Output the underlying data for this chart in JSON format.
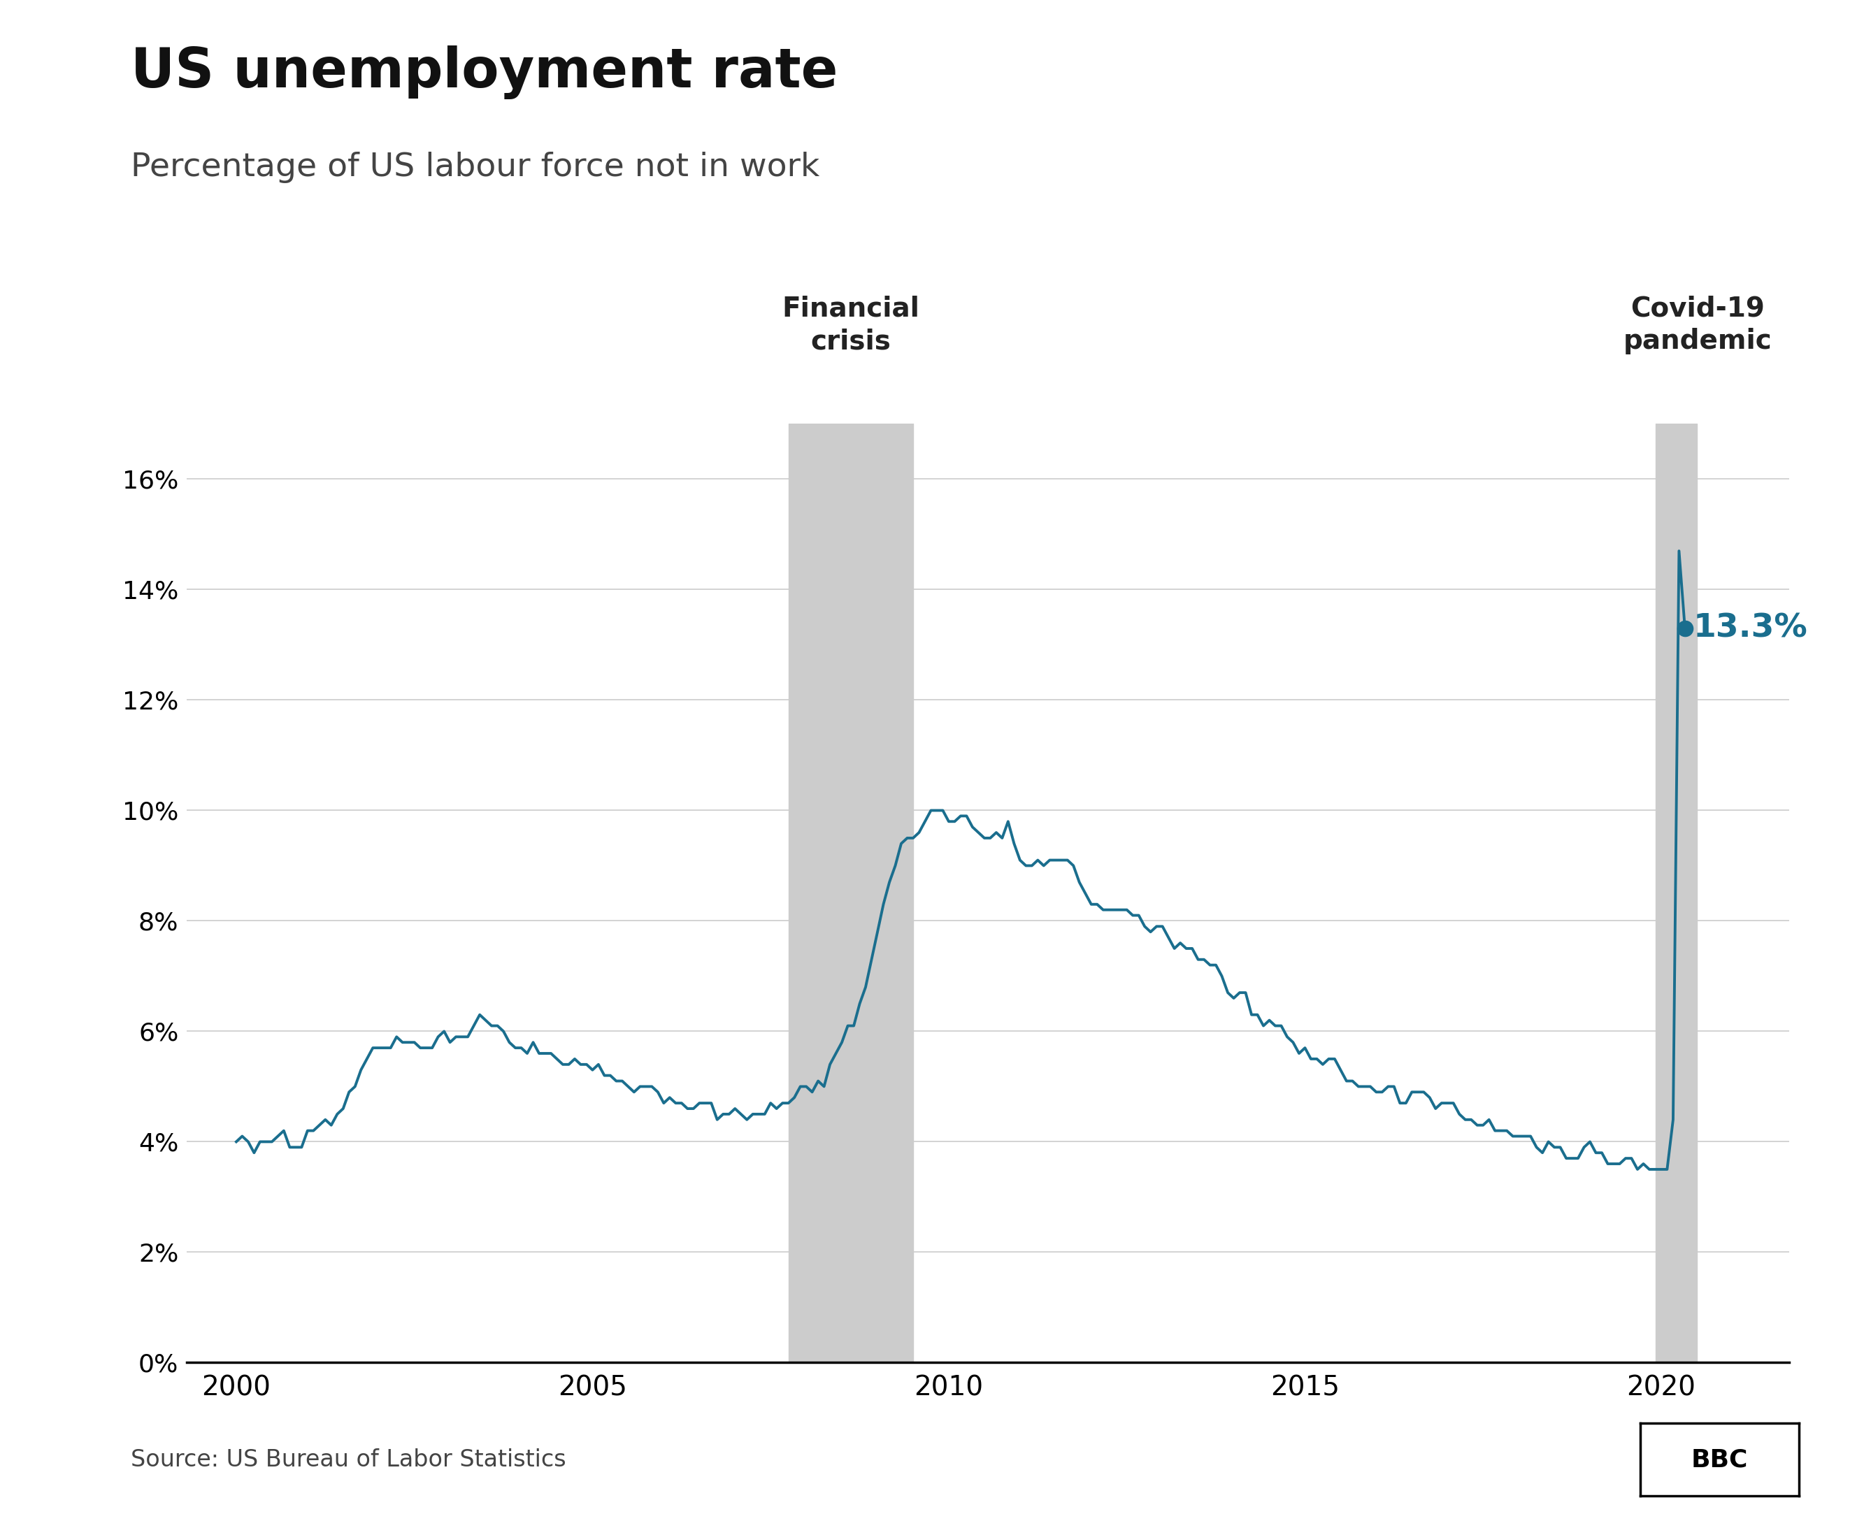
{
  "title": "US unemployment rate",
  "subtitle": "Percentage of US labour force not in work",
  "source": "Source: US Bureau of Labor Statistics",
  "line_color": "#1a6e8e",
  "background_color": "#ffffff",
  "annotation_label": "13.3%",
  "annotation_color": "#1a6e8e",
  "financial_crisis_label": "Financial\ncrisis",
  "covid_label": "Covid-19\npandemic",
  "shade_color": "#cccccc",
  "financial_crisis_start": 2007.75,
  "financial_crisis_end": 2009.5,
  "covid_start": 2019.92,
  "covid_end": 2020.5,
  "endpoint_x": 2020.333,
  "endpoint_y": 13.3,
  "ylim_min": 0,
  "ylim_max": 17,
  "yticks": [
    0,
    2,
    4,
    6,
    8,
    10,
    12,
    14,
    16
  ],
  "ytick_labels": [
    "0%",
    "2%",
    "4%",
    "6%",
    "8%",
    "10%",
    "12%",
    "14%",
    "16%"
  ],
  "xticks": [
    2000,
    2005,
    2010,
    2015,
    2020
  ],
  "xlim_min": 1999.3,
  "xlim_max": 2021.8,
  "data": [
    [
      2000.0,
      4.0
    ],
    [
      2000.083,
      4.1
    ],
    [
      2000.167,
      4.0
    ],
    [
      2000.25,
      3.8
    ],
    [
      2000.333,
      4.0
    ],
    [
      2000.417,
      4.0
    ],
    [
      2000.5,
      4.0
    ],
    [
      2000.583,
      4.1
    ],
    [
      2000.667,
      4.2
    ],
    [
      2000.75,
      3.9
    ],
    [
      2000.833,
      3.9
    ],
    [
      2000.917,
      3.9
    ],
    [
      2001.0,
      4.2
    ],
    [
      2001.083,
      4.2
    ],
    [
      2001.167,
      4.3
    ],
    [
      2001.25,
      4.4
    ],
    [
      2001.333,
      4.3
    ],
    [
      2001.417,
      4.5
    ],
    [
      2001.5,
      4.6
    ],
    [
      2001.583,
      4.9
    ],
    [
      2001.667,
      5.0
    ],
    [
      2001.75,
      5.3
    ],
    [
      2001.833,
      5.5
    ],
    [
      2001.917,
      5.7
    ],
    [
      2002.0,
      5.7
    ],
    [
      2002.083,
      5.7
    ],
    [
      2002.167,
      5.7
    ],
    [
      2002.25,
      5.9
    ],
    [
      2002.333,
      5.8
    ],
    [
      2002.417,
      5.8
    ],
    [
      2002.5,
      5.8
    ],
    [
      2002.583,
      5.7
    ],
    [
      2002.667,
      5.7
    ],
    [
      2002.75,
      5.7
    ],
    [
      2002.833,
      5.9
    ],
    [
      2002.917,
      6.0
    ],
    [
      2003.0,
      5.8
    ],
    [
      2003.083,
      5.9
    ],
    [
      2003.167,
      5.9
    ],
    [
      2003.25,
      5.9
    ],
    [
      2003.333,
      6.1
    ],
    [
      2003.417,
      6.3
    ],
    [
      2003.5,
      6.2
    ],
    [
      2003.583,
      6.1
    ],
    [
      2003.667,
      6.1
    ],
    [
      2003.75,
      6.0
    ],
    [
      2003.833,
      5.8
    ],
    [
      2003.917,
      5.7
    ],
    [
      2004.0,
      5.7
    ],
    [
      2004.083,
      5.6
    ],
    [
      2004.167,
      5.8
    ],
    [
      2004.25,
      5.6
    ],
    [
      2004.333,
      5.6
    ],
    [
      2004.417,
      5.6
    ],
    [
      2004.5,
      5.5
    ],
    [
      2004.583,
      5.4
    ],
    [
      2004.667,
      5.4
    ],
    [
      2004.75,
      5.5
    ],
    [
      2004.833,
      5.4
    ],
    [
      2004.917,
      5.4
    ],
    [
      2005.0,
      5.3
    ],
    [
      2005.083,
      5.4
    ],
    [
      2005.167,
      5.2
    ],
    [
      2005.25,
      5.2
    ],
    [
      2005.333,
      5.1
    ],
    [
      2005.417,
      5.1
    ],
    [
      2005.5,
      5.0
    ],
    [
      2005.583,
      4.9
    ],
    [
      2005.667,
      5.0
    ],
    [
      2005.75,
      5.0
    ],
    [
      2005.833,
      5.0
    ],
    [
      2005.917,
      4.9
    ],
    [
      2006.0,
      4.7
    ],
    [
      2006.083,
      4.8
    ],
    [
      2006.167,
      4.7
    ],
    [
      2006.25,
      4.7
    ],
    [
      2006.333,
      4.6
    ],
    [
      2006.417,
      4.6
    ],
    [
      2006.5,
      4.7
    ],
    [
      2006.583,
      4.7
    ],
    [
      2006.667,
      4.7
    ],
    [
      2006.75,
      4.4
    ],
    [
      2006.833,
      4.5
    ],
    [
      2006.917,
      4.5
    ],
    [
      2007.0,
      4.6
    ],
    [
      2007.083,
      4.5
    ],
    [
      2007.167,
      4.4
    ],
    [
      2007.25,
      4.5
    ],
    [
      2007.333,
      4.5
    ],
    [
      2007.417,
      4.5
    ],
    [
      2007.5,
      4.7
    ],
    [
      2007.583,
      4.6
    ],
    [
      2007.667,
      4.7
    ],
    [
      2007.75,
      4.7
    ],
    [
      2007.833,
      4.8
    ],
    [
      2007.917,
      5.0
    ],
    [
      2008.0,
      5.0
    ],
    [
      2008.083,
      4.9
    ],
    [
      2008.167,
      5.1
    ],
    [
      2008.25,
      5.0
    ],
    [
      2008.333,
      5.4
    ],
    [
      2008.417,
      5.6
    ],
    [
      2008.5,
      5.8
    ],
    [
      2008.583,
      6.1
    ],
    [
      2008.667,
      6.1
    ],
    [
      2008.75,
      6.5
    ],
    [
      2008.833,
      6.8
    ],
    [
      2008.917,
      7.3
    ],
    [
      2009.0,
      7.8
    ],
    [
      2009.083,
      8.3
    ],
    [
      2009.167,
      8.7
    ],
    [
      2009.25,
      9.0
    ],
    [
      2009.333,
      9.4
    ],
    [
      2009.417,
      9.5
    ],
    [
      2009.5,
      9.5
    ],
    [
      2009.583,
      9.6
    ],
    [
      2009.667,
      9.8
    ],
    [
      2009.75,
      10.0
    ],
    [
      2009.833,
      10.0
    ],
    [
      2009.917,
      10.0
    ],
    [
      2010.0,
      9.8
    ],
    [
      2010.083,
      9.8
    ],
    [
      2010.167,
      9.9
    ],
    [
      2010.25,
      9.9
    ],
    [
      2010.333,
      9.7
    ],
    [
      2010.417,
      9.6
    ],
    [
      2010.5,
      9.5
    ],
    [
      2010.583,
      9.5
    ],
    [
      2010.667,
      9.6
    ],
    [
      2010.75,
      9.5
    ],
    [
      2010.833,
      9.8
    ],
    [
      2010.917,
      9.4
    ],
    [
      2011.0,
      9.1
    ],
    [
      2011.083,
      9.0
    ],
    [
      2011.167,
      9.0
    ],
    [
      2011.25,
      9.1
    ],
    [
      2011.333,
      9.0
    ],
    [
      2011.417,
      9.1
    ],
    [
      2011.5,
      9.1
    ],
    [
      2011.583,
      9.1
    ],
    [
      2011.667,
      9.1
    ],
    [
      2011.75,
      9.0
    ],
    [
      2011.833,
      8.7
    ],
    [
      2011.917,
      8.5
    ],
    [
      2012.0,
      8.3
    ],
    [
      2012.083,
      8.3
    ],
    [
      2012.167,
      8.2
    ],
    [
      2012.25,
      8.2
    ],
    [
      2012.333,
      8.2
    ],
    [
      2012.417,
      8.2
    ],
    [
      2012.5,
      8.2
    ],
    [
      2012.583,
      8.1
    ],
    [
      2012.667,
      8.1
    ],
    [
      2012.75,
      7.9
    ],
    [
      2012.833,
      7.8
    ],
    [
      2012.917,
      7.9
    ],
    [
      2013.0,
      7.9
    ],
    [
      2013.083,
      7.7
    ],
    [
      2013.167,
      7.5
    ],
    [
      2013.25,
      7.6
    ],
    [
      2013.333,
      7.5
    ],
    [
      2013.417,
      7.5
    ],
    [
      2013.5,
      7.3
    ],
    [
      2013.583,
      7.3
    ],
    [
      2013.667,
      7.2
    ],
    [
      2013.75,
      7.2
    ],
    [
      2013.833,
      7.0
    ],
    [
      2013.917,
      6.7
    ],
    [
      2014.0,
      6.6
    ],
    [
      2014.083,
      6.7
    ],
    [
      2014.167,
      6.7
    ],
    [
      2014.25,
      6.3
    ],
    [
      2014.333,
      6.3
    ],
    [
      2014.417,
      6.1
    ],
    [
      2014.5,
      6.2
    ],
    [
      2014.583,
      6.1
    ],
    [
      2014.667,
      6.1
    ],
    [
      2014.75,
      5.9
    ],
    [
      2014.833,
      5.8
    ],
    [
      2014.917,
      5.6
    ],
    [
      2015.0,
      5.7
    ],
    [
      2015.083,
      5.5
    ],
    [
      2015.167,
      5.5
    ],
    [
      2015.25,
      5.4
    ],
    [
      2015.333,
      5.5
    ],
    [
      2015.417,
      5.5
    ],
    [
      2015.5,
      5.3
    ],
    [
      2015.583,
      5.1
    ],
    [
      2015.667,
      5.1
    ],
    [
      2015.75,
      5.0
    ],
    [
      2015.833,
      5.0
    ],
    [
      2015.917,
      5.0
    ],
    [
      2016.0,
      4.9
    ],
    [
      2016.083,
      4.9
    ],
    [
      2016.167,
      5.0
    ],
    [
      2016.25,
      5.0
    ],
    [
      2016.333,
      4.7
    ],
    [
      2016.417,
      4.7
    ],
    [
      2016.5,
      4.9
    ],
    [
      2016.583,
      4.9
    ],
    [
      2016.667,
      4.9
    ],
    [
      2016.75,
      4.8
    ],
    [
      2016.833,
      4.6
    ],
    [
      2016.917,
      4.7
    ],
    [
      2017.0,
      4.7
    ],
    [
      2017.083,
      4.7
    ],
    [
      2017.167,
      4.5
    ],
    [
      2017.25,
      4.4
    ],
    [
      2017.333,
      4.4
    ],
    [
      2017.417,
      4.3
    ],
    [
      2017.5,
      4.3
    ],
    [
      2017.583,
      4.4
    ],
    [
      2017.667,
      4.2
    ],
    [
      2017.75,
      4.2
    ],
    [
      2017.833,
      4.2
    ],
    [
      2017.917,
      4.1
    ],
    [
      2018.0,
      4.1
    ],
    [
      2018.083,
      4.1
    ],
    [
      2018.167,
      4.1
    ],
    [
      2018.25,
      3.9
    ],
    [
      2018.333,
      3.8
    ],
    [
      2018.417,
      4.0
    ],
    [
      2018.5,
      3.9
    ],
    [
      2018.583,
      3.9
    ],
    [
      2018.667,
      3.7
    ],
    [
      2018.75,
      3.7
    ],
    [
      2018.833,
      3.7
    ],
    [
      2018.917,
      3.9
    ],
    [
      2019.0,
      4.0
    ],
    [
      2019.083,
      3.8
    ],
    [
      2019.167,
      3.8
    ],
    [
      2019.25,
      3.6
    ],
    [
      2019.333,
      3.6
    ],
    [
      2019.417,
      3.6
    ],
    [
      2019.5,
      3.7
    ],
    [
      2019.583,
      3.7
    ],
    [
      2019.667,
      3.5
    ],
    [
      2019.75,
      3.6
    ],
    [
      2019.833,
      3.5
    ],
    [
      2019.917,
      3.5
    ],
    [
      2020.0,
      3.5
    ],
    [
      2020.083,
      3.5
    ],
    [
      2020.167,
      4.4
    ],
    [
      2020.25,
      14.7
    ],
    [
      2020.333,
      13.3
    ]
  ]
}
